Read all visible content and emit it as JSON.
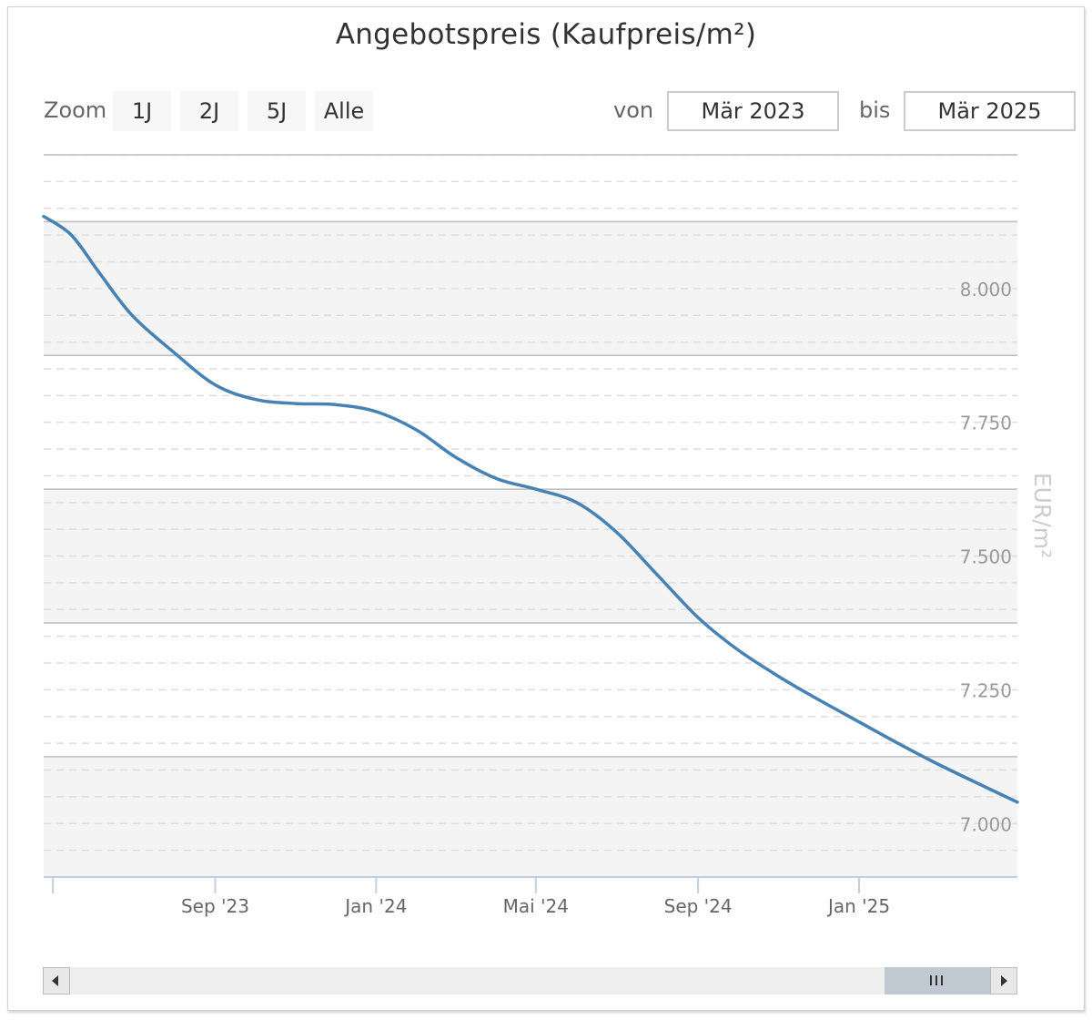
{
  "title": "Angebotspreis (Kaufpreis/m²)",
  "zoom": {
    "label": "Zoom",
    "buttons": [
      "1J",
      "2J",
      "5J",
      "Alle"
    ]
  },
  "range": {
    "from_label": "von",
    "from_value": "Mär 2023",
    "to_label": "bis",
    "to_value": "Mär 2025"
  },
  "colors": {
    "series": "#4682b4",
    "band": "#f4f4f4",
    "grid": "#dddddd"
  },
  "chart_data": {
    "type": "line",
    "title": "Angebotspreis (Kaufpreis/m²)",
    "ylabel": "EUR/m²",
    "xlabel": "",
    "ylim": [
      6900,
      8250
    ],
    "y_ticks": [
      7000,
      7250,
      7500,
      7750,
      8000
    ],
    "y_tick_labels": [
      "7.000",
      "7.250",
      "7.500",
      "7.750",
      "8.000"
    ],
    "x_range": [
      "2023-04-24",
      "2025-05-01"
    ],
    "x_ticks": [
      {
        "date": "2023-05-01",
        "label": ""
      },
      {
        "date": "2023-09-01",
        "label": "Sep '23"
      },
      {
        "date": "2024-01-01",
        "label": "Jan '24"
      },
      {
        "date": "2024-05-01",
        "label": "Mai '24"
      },
      {
        "date": "2024-09-01",
        "label": "Sep '24"
      },
      {
        "date": "2025-01-01",
        "label": "Jan '25"
      }
    ],
    "grid": true,
    "series": [
      {
        "values": [
          {
            "x": "2023-04-24",
            "y": 8135
          },
          {
            "x": "2023-05-15",
            "y": 8100
          },
          {
            "x": "2023-06-05",
            "y": 8030
          },
          {
            "x": "2023-06-30",
            "y": 7950
          },
          {
            "x": "2023-08-01",
            "y": 7880
          },
          {
            "x": "2023-09-01",
            "y": 7820
          },
          {
            "x": "2023-10-01",
            "y": 7793
          },
          {
            "x": "2023-11-01",
            "y": 7785
          },
          {
            "x": "2023-12-01",
            "y": 7783
          },
          {
            "x": "2024-01-01",
            "y": 7770
          },
          {
            "x": "2024-02-01",
            "y": 7735
          },
          {
            "x": "2024-03-01",
            "y": 7685
          },
          {
            "x": "2024-04-01",
            "y": 7645
          },
          {
            "x": "2024-05-01",
            "y": 7625
          },
          {
            "x": "2024-06-01",
            "y": 7600
          },
          {
            "x": "2024-07-01",
            "y": 7545
          },
          {
            "x": "2024-08-01",
            "y": 7465
          },
          {
            "x": "2024-09-01",
            "y": 7385
          },
          {
            "x": "2024-10-01",
            "y": 7325
          },
          {
            "x": "2024-11-01",
            "y": 7275
          },
          {
            "x": "2024-12-01",
            "y": 7232
          },
          {
            "x": "2025-01-01",
            "y": 7190
          },
          {
            "x": "2025-02-01",
            "y": 7148
          },
          {
            "x": "2025-03-01",
            "y": 7112
          },
          {
            "x": "2025-04-01",
            "y": 7075
          },
          {
            "x": "2025-05-01",
            "y": 7040
          }
        ]
      }
    ]
  },
  "navigator": {
    "from_date": "2023-04-24",
    "to_date": "2025-05-01"
  }
}
